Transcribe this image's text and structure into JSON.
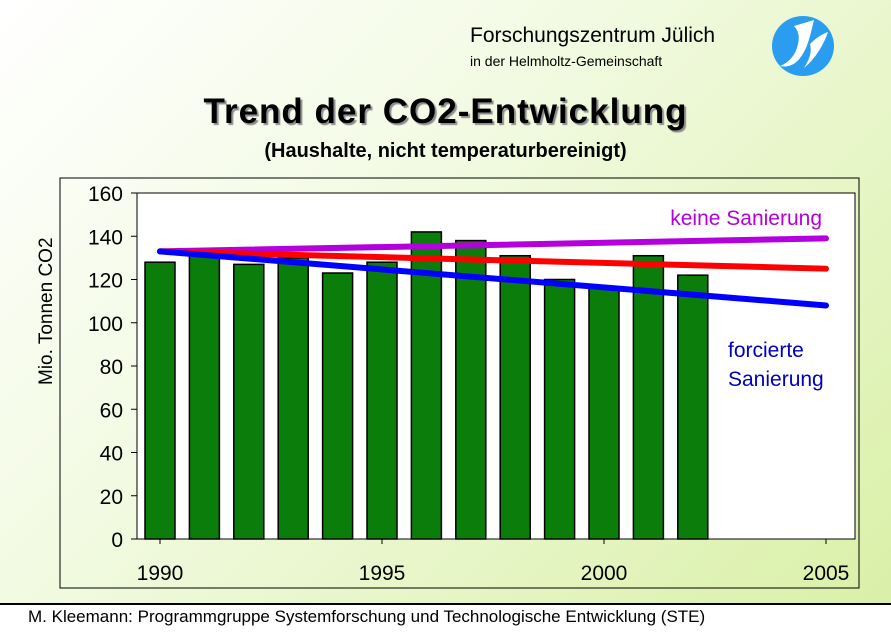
{
  "header": {
    "org_name": "Forschungszentrum Jülich",
    "org_sub": "in der Helmholtz-Gemeinschaft"
  },
  "logo": {
    "icon": "fzj-logo-icon",
    "colors": [
      "#2a9df0",
      "#ffffff"
    ]
  },
  "footer": {
    "text": "M. Kleemann: Programmgruppe Systemforschung und Technologische Entwicklung (STE)"
  },
  "chart_data": {
    "type": "bar",
    "title": "Trend der CO2-Entwicklung",
    "subtitle": "(Haushalte, nicht temperaturbereinigt)",
    "ylabel": "Mio. Tonnen CO2",
    "xlabel": "",
    "ylim": [
      0,
      160
    ],
    "yticks": [
      0,
      20,
      40,
      60,
      80,
      100,
      120,
      140,
      160
    ],
    "xlim": [
      1990,
      2005
    ],
    "xtick_labels": [
      "1990",
      "1995",
      "2000",
      "2005"
    ],
    "grid": false,
    "bar_color": "#0b7d0b",
    "categories": [
      1990,
      1991,
      1992,
      1993,
      1994,
      1995,
      1996,
      1997,
      1998,
      1999,
      2000,
      2001,
      2002
    ],
    "values": [
      128,
      133,
      127,
      130,
      123,
      128,
      142,
      138,
      131,
      120,
      116,
      131,
      122
    ],
    "trend_lines": [
      {
        "name": "keine Sanierung",
        "color": "#b400dc",
        "x": [
          1990,
          2005
        ],
        "y": [
          133,
          139
        ]
      },
      {
        "name": "",
        "color": "#ff0000",
        "x": [
          1990,
          2005
        ],
        "y": [
          133,
          125
        ]
      },
      {
        "name": "forcierte Sanierung",
        "color": "#0000ff",
        "x": [
          1990,
          2005
        ],
        "y": [
          133,
          108
        ]
      }
    ],
    "annotations": {
      "top": "keine Sanierung",
      "bottom_line1": "forcierte",
      "bottom_line2": "Sanierung"
    }
  }
}
